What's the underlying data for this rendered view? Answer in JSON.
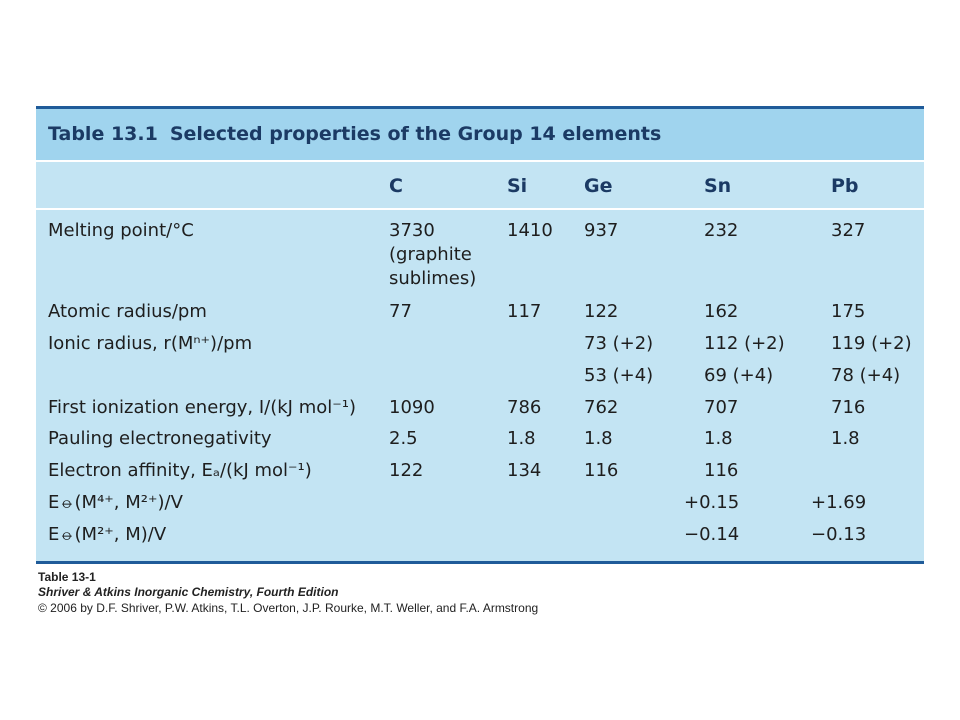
{
  "table": {
    "number": "Table 13.1",
    "title": "Selected properties of the Group 14 elements",
    "columns": [
      "C",
      "Si",
      "Ge",
      "Sn",
      "Pb"
    ],
    "melting": {
      "label": "Melting point/°C",
      "C": [
        "3730",
        "(graphite",
        "sublimes)"
      ],
      "Si": "1410",
      "Ge": "937",
      "Sn": "232",
      "Pb": "327"
    },
    "atomic_radius": {
      "label": "Atomic radius/pm",
      "values": [
        "77",
        "117",
        "122",
        "162",
        "175"
      ]
    },
    "ionic_radius": {
      "label": "Ionic radius, r(Mⁿ⁺)/pm",
      "row1": [
        "",
        "",
        "73 (+2)",
        "112 (+2)",
        "119 (+2)"
      ],
      "row2": [
        "",
        "",
        "53 (+4)",
        "69 (+4)",
        "78 (+4)"
      ]
    },
    "ionization": {
      "label": "First ionization energy, I/(kJ mol⁻¹)",
      "values": [
        "1090",
        "786",
        "762",
        "707",
        "716"
      ]
    },
    "electronegativity": {
      "label": "Pauling electronegativity",
      "values": [
        "2.5",
        "1.8",
        "1.8",
        "1.8",
        "1.8"
      ]
    },
    "affinity": {
      "label": "Electron affinity, Eₐ/(kJ mol⁻¹)",
      "values": [
        "122",
        "134",
        "116",
        "116",
        ""
      ]
    },
    "e_m4": {
      "label": "E⦵(M⁴⁺, M²⁺)/V",
      "values": [
        "",
        "",
        "",
        "+0.15",
        "+1.69"
      ]
    },
    "e_m2": {
      "label": "E⦵(M²⁺, M)/V",
      "values": [
        "",
        "",
        "",
        "−0.14",
        "−0.13"
      ]
    }
  },
  "caption": {
    "line1": "Table 13-1",
    "line2": "Shriver & Atkins Inorganic Chemistry, Fourth Edition",
    "line3": "© 2006 by D.F. Shriver, P.W. Atkins, T.L. Overton, J.P. Rourke, M.T. Weller, and F.A. Armstrong"
  }
}
